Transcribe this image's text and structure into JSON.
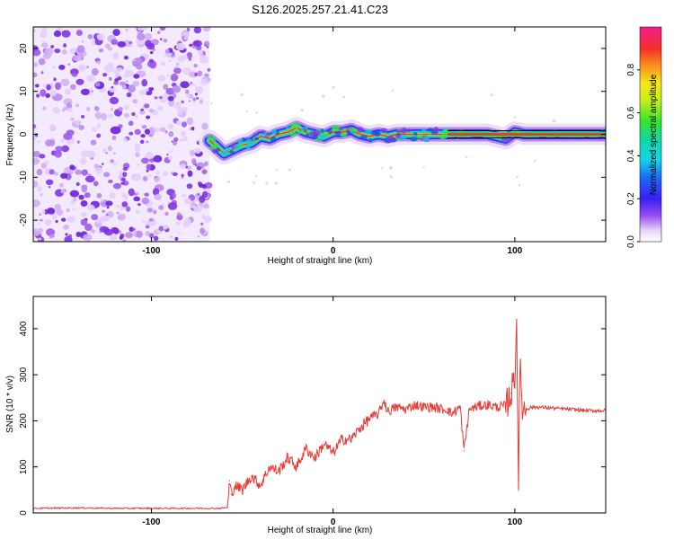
{
  "figure_title": "S126.2025.257.21.41.C23",
  "colors": {
    "snr_line": "#e83a36",
    "spectro_low": "#e6d4f7",
    "spectro_mid": "#8a3ce6",
    "track_outline": "#000000"
  },
  "chart_data": [
    {
      "type": "heatmap",
      "title": "S126.2025.257.21.41.C23",
      "xlabel": "Height of straight line (km)",
      "ylabel": "Frequency (Hz)",
      "xlim": [
        -165,
        150
      ],
      "ylim": [
        -25,
        25
      ],
      "x_ticks": [
        -100,
        0,
        100
      ],
      "y_ticks": [
        -20,
        -10,
        0,
        10,
        20
      ],
      "noise_region_x": [
        -165,
        -68
      ],
      "track": {
        "description_x": [
          -68,
          -65,
          -60,
          -55,
          -50,
          -45,
          -40,
          -35,
          -30,
          -25,
          -20,
          -15,
          -10,
          -5,
          0,
          5,
          10,
          15,
          20,
          25,
          30,
          35,
          40,
          45,
          50,
          55,
          60,
          65,
          70,
          75,
          80,
          85,
          90,
          95,
          100,
          105,
          110,
          120,
          130,
          140,
          150
        ],
        "frequency_hz": [
          -1.5,
          -2.5,
          -4.5,
          -3.5,
          -2.5,
          -2,
          -0.5,
          -1,
          0,
          0.5,
          1.5,
          0.5,
          0,
          -0.5,
          0.5,
          0.5,
          1,
          0,
          -0.5,
          0,
          -0.5,
          0,
          0,
          0,
          0,
          0,
          0,
          0,
          0,
          0,
          0,
          0,
          -0.5,
          -1,
          0.5,
          0,
          0,
          0,
          0,
          0,
          0
        ]
      },
      "colorbar": {
        "label": "Normalized spectral amplitude",
        "range": [
          0,
          1
        ],
        "ticks": [
          "0.0",
          "0.2",
          "0.4",
          "0.6",
          "0.8"
        ],
        "ticks_values": [
          0,
          0.2,
          0.4,
          0.6,
          0.8
        ]
      }
    },
    {
      "type": "line",
      "xlabel": "Height of straight line (km)",
      "ylabel": "SNR (10 * v/v)",
      "xlim": [
        -165,
        150
      ],
      "ylim": [
        0,
        470
      ],
      "x_ticks": [
        -100,
        0,
        100
      ],
      "y_ticks": [
        0,
        100,
        200,
        300,
        400
      ],
      "series": [
        {
          "name": "SNR",
          "x": [
            -165,
            -140,
            -120,
            -100,
            -80,
            -70,
            -62,
            -58,
            -57,
            -56,
            -54,
            -50,
            -45,
            -40,
            -35,
            -30,
            -25,
            -20,
            -15,
            -10,
            -5,
            0,
            5,
            10,
            15,
            20,
            25,
            28,
            30,
            35,
            40,
            45,
            50,
            55,
            60,
            63,
            65,
            70,
            72,
            75,
            80,
            85,
            90,
            95,
            98,
            100,
            101,
            102,
            103,
            104,
            105,
            110,
            120,
            130,
            140,
            150
          ],
          "y": [
            10,
            11,
            10,
            10,
            10,
            10,
            10,
            12,
            70,
            40,
            60,
            50,
            80,
            60,
            100,
            90,
            120,
            100,
            140,
            120,
            150,
            130,
            160,
            160,
            185,
            205,
            215,
            245,
            220,
            230,
            225,
            235,
            230,
            230,
            225,
            225,
            215,
            230,
            135,
            225,
            232,
            235,
            230,
            232,
            260,
            300,
            420,
            70,
            330,
            230,
            225,
            230,
            228,
            225,
            222,
            222
          ]
        }
      ]
    }
  ]
}
